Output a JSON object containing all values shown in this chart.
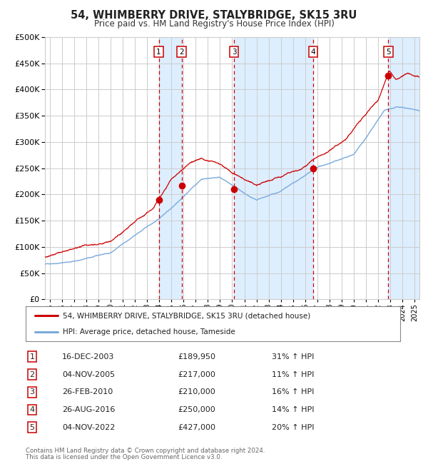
{
  "title": "54, WHIMBERRY DRIVE, STALYBRIDGE, SK15 3RU",
  "subtitle": "Price paid vs. HM Land Registry's House Price Index (HPI)",
  "legend_line1": "54, WHIMBERRY DRIVE, STALYBRIDGE, SK15 3RU (detached house)",
  "legend_line2": "HPI: Average price, detached house, Tameside",
  "footer1": "Contains HM Land Registry data © Crown copyright and database right 2024.",
  "footer2": "This data is licensed under the Open Government Licence v3.0.",
  "transactions": [
    {
      "num": 1,
      "date": "16-DEC-2003",
      "price": 189950,
      "price_str": "£189,950",
      "hpi_pct": "31% ↑ HPI",
      "x_year": 2003.96
    },
    {
      "num": 2,
      "date": "04-NOV-2005",
      "price": 217000,
      "price_str": "£217,000",
      "hpi_pct": "11% ↑ HPI",
      "x_year": 2005.84
    },
    {
      "num": 3,
      "date": "26-FEB-2010",
      "price": 210000,
      "price_str": "£210,000",
      "hpi_pct": "16% ↑ HPI",
      "x_year": 2010.15
    },
    {
      "num": 4,
      "date": "26-AUG-2016",
      "price": 250000,
      "price_str": "£250,000",
      "hpi_pct": "14% ↑ HPI",
      "x_year": 2016.65
    },
    {
      "num": 5,
      "date": "04-NOV-2022",
      "price": 427000,
      "price_str": "£427,000",
      "hpi_pct": "20% ↑ HPI",
      "x_year": 2022.84
    }
  ],
  "hpi_color": "#7aaadd",
  "price_color": "#cc0000",
  "shade_color": "#ddeeff",
  "ylim": [
    0,
    500000
  ],
  "xlim_start": 1994.6,
  "xlim_end": 2025.4,
  "background_color": "#ffffff",
  "grid_color": "#cccccc",
  "yticks": [
    0,
    50000,
    100000,
    150000,
    200000,
    250000,
    300000,
    350000,
    400000,
    450000,
    500000
  ]
}
